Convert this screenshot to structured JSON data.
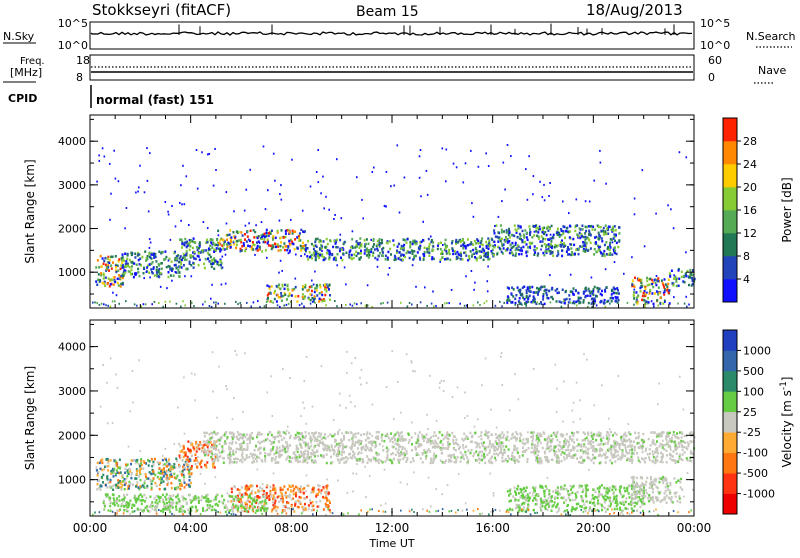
{
  "header": {
    "station": "Stokkseyri (fitACF)",
    "beam": "Beam 15",
    "date": "18/Aug/2013"
  },
  "meta_panels": {
    "nsky_label": "N.Sky",
    "nsky_ticks": [
      "10^5",
      "10^0"
    ],
    "nsearch_label": "N.Search",
    "nsearch_ticks": [
      "10^5",
      "10^0"
    ],
    "freq_label_line1": "Freq.",
    "freq_label_line2": "[MHz]",
    "freq_ticks": [
      "18",
      "8"
    ],
    "nave_label": "Nave",
    "nave_ticks": [
      "60",
      "0"
    ],
    "cpid_label": "CPID",
    "cpid_value": "normal (fast) 151"
  },
  "chart_data": [
    {
      "type": "heatmap",
      "name": "power",
      "ylabel": "Slant Range [km]",
      "yticks": [
        "1000",
        "2000",
        "3000",
        "4000"
      ],
      "ylim": [
        180,
        4600
      ],
      "xlim_hours": [
        0,
        24
      ],
      "colorbar_label": "Power [dB]",
      "colorbar_ticks": [
        "4",
        "8",
        "12",
        "16",
        "20",
        "24",
        "28"
      ],
      "colorbar_colors": [
        "#1010ff",
        "#2244bb",
        "#227755",
        "#55aa55",
        "#88cc33",
        "#ffcc00",
        "#ff8800",
        "#ff2200"
      ],
      "bands": [
        {
          "t": [
            0.2,
            1.3
          ],
          "r": [
            700,
            1400
          ],
          "level": "high"
        },
        {
          "t": [
            1.2,
            3.6
          ],
          "r": [
            900,
            1500
          ],
          "level": "mid"
        },
        {
          "t": [
            3.5,
            5.2
          ],
          "r": [
            1100,
            1800
          ],
          "level": "mid"
        },
        {
          "t": [
            5.0,
            8.5
          ],
          "r": [
            1500,
            2000
          ],
          "level": "high"
        },
        {
          "t": [
            8.5,
            16.0
          ],
          "r": [
            1300,
            1800
          ],
          "level": "mid"
        },
        {
          "t": [
            16.0,
            21.0
          ],
          "r": [
            1400,
            2100
          ],
          "level": "mid"
        },
        {
          "t": [
            7.0,
            9.5
          ],
          "r": [
            350,
            750
          ],
          "level": "high"
        },
        {
          "t": [
            21.5,
            23.0
          ],
          "r": [
            300,
            900
          ],
          "level": "high"
        },
        {
          "t": [
            23.0,
            24.0
          ],
          "r": [
            700,
            1100
          ],
          "level": "mid"
        },
        {
          "t": [
            16.5,
            21.0
          ],
          "r": [
            300,
            700
          ],
          "level": "low"
        }
      ]
    },
    {
      "type": "heatmap",
      "name": "velocity",
      "ylabel": "Slant Range [km]",
      "yticks": [
        "1000",
        "2000",
        "3000",
        "4000"
      ],
      "ylim": [
        180,
        4600
      ],
      "xlim_hours": [
        0,
        24
      ],
      "xticks": [
        "00:00",
        "04:00",
        "08:00",
        "12:00",
        "16:00",
        "20:00",
        "00:00"
      ],
      "xlabel": "Time UT",
      "colorbar_label": "Velocity [m s^-1]",
      "colorbar_ticks": [
        "1000",
        "500",
        "100",
        "25",
        "-25",
        "-100",
        "-500",
        "-1000"
      ],
      "colorbar_colors": [
        "#2040c0",
        "#3366aa",
        "#2a8a6a",
        "#66cc44",
        "#c8c8c0",
        "#ffaa33",
        "#ff7711",
        "#ff3311",
        "#ee0000"
      ],
      "bands": [
        {
          "t": [
            0.2,
            4.0
          ],
          "r": [
            800,
            1500
          ],
          "level": "mixed"
        },
        {
          "t": [
            3.5,
            5.0
          ],
          "r": [
            1300,
            1900
          ],
          "level": "orange"
        },
        {
          "t": [
            4.5,
            24.0
          ],
          "r": [
            1400,
            2100
          ],
          "level": "grey"
        },
        {
          "t": [
            5.5,
            9.5
          ],
          "r": [
            300,
            900
          ],
          "level": "orange"
        },
        {
          "t": [
            0.5,
            7.0
          ],
          "r": [
            300,
            700
          ],
          "level": "green"
        },
        {
          "t": [
            16.5,
            22.0
          ],
          "r": [
            300,
            900
          ],
          "level": "green"
        },
        {
          "t": [
            21.5,
            23.5
          ],
          "r": [
            500,
            1100
          ],
          "level": "grey"
        }
      ]
    }
  ]
}
